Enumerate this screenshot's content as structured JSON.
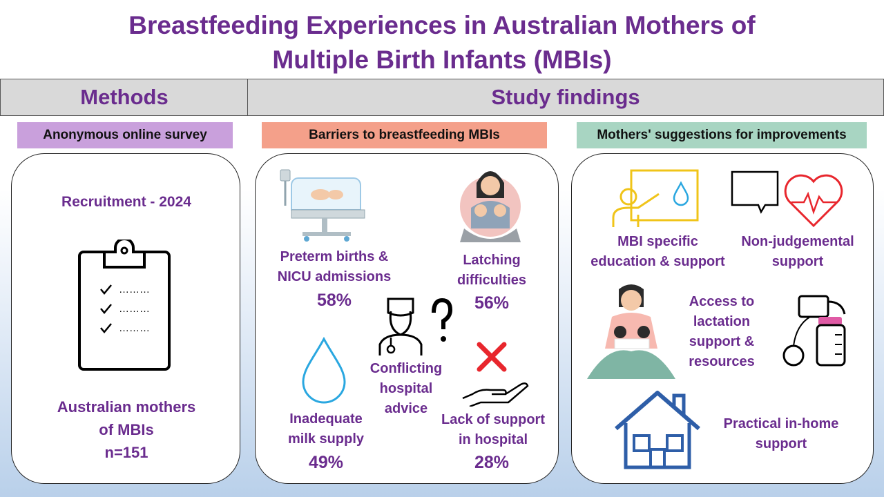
{
  "title": {
    "line1": "Breastfeeding Experiences in Australian Mothers of",
    "line2": "Multiple Birth Infants (MBIs)"
  },
  "headers": {
    "methods": "Methods",
    "findings": "Study findings"
  },
  "methods": {
    "tag": "Anonymous online survey",
    "recruitment": "Recruitment - 2024",
    "checklist_dots": [
      "………",
      "………",
      "………"
    ],
    "population_line1": "Australian mothers",
    "population_line2": "of MBIs",
    "sample_size": "n=151"
  },
  "barriers": {
    "tag": "Barriers to breastfeeding MBIs",
    "items": [
      {
        "line1": "Preterm births &",
        "line2": "NICU admissions",
        "pct": "58%"
      },
      {
        "line1": "Latching",
        "line2": "difficulties",
        "pct": "56%"
      },
      {
        "line1": "Conflicting",
        "line2": "hospital",
        "line3": "advice"
      },
      {
        "line1": "Inadequate",
        "line2": "milk supply",
        "pct": "49%"
      },
      {
        "line1": "Lack of support",
        "line2": "in hospital",
        "pct": "28%"
      }
    ]
  },
  "suggestions": {
    "tag": "Mothers' suggestions for improvements",
    "items": [
      {
        "line1": "MBI specific",
        "line2": "education & support"
      },
      {
        "line1": "Non-judgemental",
        "line2": "support"
      },
      {
        "line1": "Access to",
        "line2": "lactation",
        "line3": "support &",
        "line4": "resources"
      },
      {
        "line1": "Practical in-home",
        "line2": "support"
      }
    ]
  },
  "colors": {
    "title": "#6a2c8e",
    "methods_tag": "#c9a0dc",
    "barriers_tag": "#f4a08a",
    "suggestions_tag": "#a8d5c2",
    "droplet": "#2aa7e0",
    "heart": "#e8262d",
    "cross": "#e8262d",
    "house": "#2e5ea8",
    "board": "#f0c419"
  }
}
